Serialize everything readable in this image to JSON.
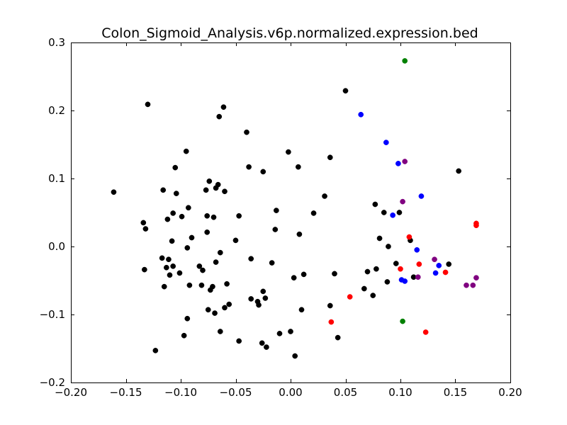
{
  "chart_data": {
    "type": "scatter",
    "title": "Colon_Sigmoid_Analysis.v6p.normalized.expression.bed",
    "xlabel": "",
    "ylabel": "",
    "xlim": [
      -0.2,
      0.2
    ],
    "ylim": [
      -0.2,
      0.3
    ],
    "grid": false,
    "x_ticks": [
      -0.2,
      -0.15,
      -0.1,
      -0.05,
      0.0,
      0.05,
      0.1,
      0.15,
      0.2
    ],
    "x_tick_labels": [
      "−0.20",
      "−0.15",
      "−0.10",
      "−0.05",
      "0.00",
      "0.05",
      "0.10",
      "0.15",
      "0.20"
    ],
    "y_ticks": [
      -0.2,
      -0.1,
      0.0,
      0.1,
      0.2,
      0.3
    ],
    "y_tick_labels": [
      "−0.2",
      "−0.1",
      "0.0",
      "0.1",
      "0.2",
      "0.3"
    ],
    "colors": {
      "black": "#000000",
      "blue": "#0000ff",
      "red": "#ff0000",
      "purple": "#800080",
      "green": "#008000"
    },
    "series": [
      {
        "color": "#000000",
        "points": [
          [
            -0.161,
            0.08
          ],
          [
            -0.13,
            0.209
          ],
          [
            -0.134,
            0.035
          ],
          [
            -0.132,
            0.026
          ],
          [
            -0.133,
            -0.034
          ],
          [
            -0.123,
            -0.153
          ],
          [
            -0.116,
            0.083
          ],
          [
            -0.117,
            -0.017
          ],
          [
            -0.115,
            -0.059
          ],
          [
            -0.113,
            -0.031
          ],
          [
            -0.112,
            0.04
          ],
          [
            -0.111,
            -0.019
          ],
          [
            -0.11,
            -0.042
          ],
          [
            -0.108,
            0.008
          ],
          [
            -0.107,
            0.049
          ],
          [
            -0.107,
            -0.029
          ],
          [
            -0.105,
            0.116
          ],
          [
            -0.104,
            0.078
          ],
          [
            -0.101,
            -0.039
          ],
          [
            -0.099,
            0.044
          ],
          [
            -0.097,
            -0.131
          ],
          [
            -0.095,
            0.14
          ],
          [
            -0.094,
            -0.106
          ],
          [
            -0.094,
            -0.002
          ],
          [
            -0.093,
            0.057
          ],
          [
            -0.092,
            -0.057
          ],
          [
            -0.09,
            0.013
          ],
          [
            -0.083,
            -0.029
          ],
          [
            -0.081,
            -0.057
          ],
          [
            -0.08,
            -0.035
          ],
          [
            -0.077,
            0.083
          ],
          [
            -0.076,
            0.021
          ],
          [
            -0.076,
            0.045
          ],
          [
            -0.075,
            -0.093
          ],
          [
            -0.074,
            0.096
          ],
          [
            -0.073,
            -0.064
          ],
          [
            -0.071,
            -0.059
          ],
          [
            -0.07,
            0.043
          ],
          [
            -0.069,
            -0.098
          ],
          [
            -0.068,
            0.086
          ],
          [
            -0.068,
            -0.023
          ],
          [
            -0.066,
            0.091
          ],
          [
            -0.065,
            0.191
          ],
          [
            -0.064,
            -0.125
          ],
          [
            -0.064,
            -0.009
          ],
          [
            -0.061,
            0.205
          ],
          [
            -0.06,
            0.081
          ],
          [
            -0.06,
            -0.09
          ],
          [
            -0.058,
            -0.055
          ],
          [
            -0.056,
            -0.085
          ],
          [
            -0.05,
            0.009
          ],
          [
            -0.047,
            0.045
          ],
          [
            -0.047,
            -0.139
          ],
          [
            -0.04,
            0.168
          ],
          [
            -0.038,
            0.117
          ],
          [
            -0.036,
            -0.077
          ],
          [
            -0.036,
            -0.018
          ],
          [
            -0.03,
            -0.081
          ],
          [
            -0.029,
            -0.086
          ],
          [
            -0.026,
            -0.142
          ],
          [
            -0.025,
            0.11
          ],
          [
            -0.025,
            -0.066
          ],
          [
            -0.023,
            -0.076
          ],
          [
            -0.022,
            -0.148
          ],
          [
            -0.017,
            -0.024
          ],
          [
            -0.013,
            0.053
          ],
          [
            -0.014,
            0.025
          ],
          [
            -0.01,
            -0.128
          ],
          [
            -0.002,
            0.139
          ],
          [
            0.0,
            -0.125
          ],
          [
            0.003,
            -0.046
          ],
          [
            0.004,
            -0.161
          ],
          [
            0.007,
            0.117
          ],
          [
            0.008,
            0.018
          ],
          [
            0.01,
            -0.093
          ],
          [
            0.012,
            -0.041
          ],
          [
            0.021,
            0.049
          ],
          [
            0.031,
            0.074
          ],
          [
            0.036,
            0.131
          ],
          [
            0.036,
            -0.087
          ],
          [
            0.04,
            -0.04
          ],
          [
            0.043,
            -0.134
          ],
          [
            0.05,
            0.229
          ],
          [
            0.067,
            -0.062
          ],
          [
            0.07,
            -0.037
          ],
          [
            0.075,
            -0.072
          ],
          [
            0.077,
            0.062
          ],
          [
            0.078,
            -0.033
          ],
          [
            0.081,
            0.012
          ],
          [
            0.085,
            0.05
          ],
          [
            0.088,
            -0.052
          ],
          [
            0.089,
            0.0
          ],
          [
            0.096,
            -0.025
          ],
          [
            0.099,
            0.05
          ],
          [
            0.109,
            0.009
          ],
          [
            0.112,
            -0.045
          ],
          [
            0.144,
            -0.026
          ],
          [
            0.153,
            0.111
          ]
        ]
      },
      {
        "color": "#0000ff",
        "points": [
          [
            0.064,
            0.194
          ],
          [
            0.087,
            0.153
          ],
          [
            0.093,
            0.046
          ],
          [
            0.098,
            0.122
          ],
          [
            0.101,
            -0.049
          ],
          [
            0.104,
            -0.051
          ],
          [
            0.115,
            -0.005
          ],
          [
            0.119,
            0.074
          ],
          [
            0.132,
            -0.039
          ],
          [
            0.135,
            -0.028
          ]
        ]
      },
      {
        "color": "#ff0000",
        "points": [
          [
            0.037,
            -0.111
          ],
          [
            0.054,
            -0.074
          ],
          [
            0.1,
            -0.033
          ],
          [
            0.108,
            0.014
          ],
          [
            0.117,
            -0.026
          ],
          [
            0.123,
            -0.126
          ],
          [
            0.141,
            -0.038
          ],
          [
            0.169,
            0.034
          ],
          [
            0.169,
            0.031
          ]
        ]
      },
      {
        "color": "#800080",
        "points": [
          [
            0.102,
            0.066
          ],
          [
            0.104,
            0.125
          ],
          [
            0.116,
            -0.045
          ],
          [
            0.131,
            -0.019
          ],
          [
            0.16,
            -0.057
          ],
          [
            0.166,
            -0.057
          ],
          [
            0.169,
            -0.046
          ]
        ]
      },
      {
        "color": "#008000",
        "points": [
          [
            0.104,
            0.273
          ],
          [
            0.102,
            -0.11
          ]
        ]
      }
    ]
  }
}
